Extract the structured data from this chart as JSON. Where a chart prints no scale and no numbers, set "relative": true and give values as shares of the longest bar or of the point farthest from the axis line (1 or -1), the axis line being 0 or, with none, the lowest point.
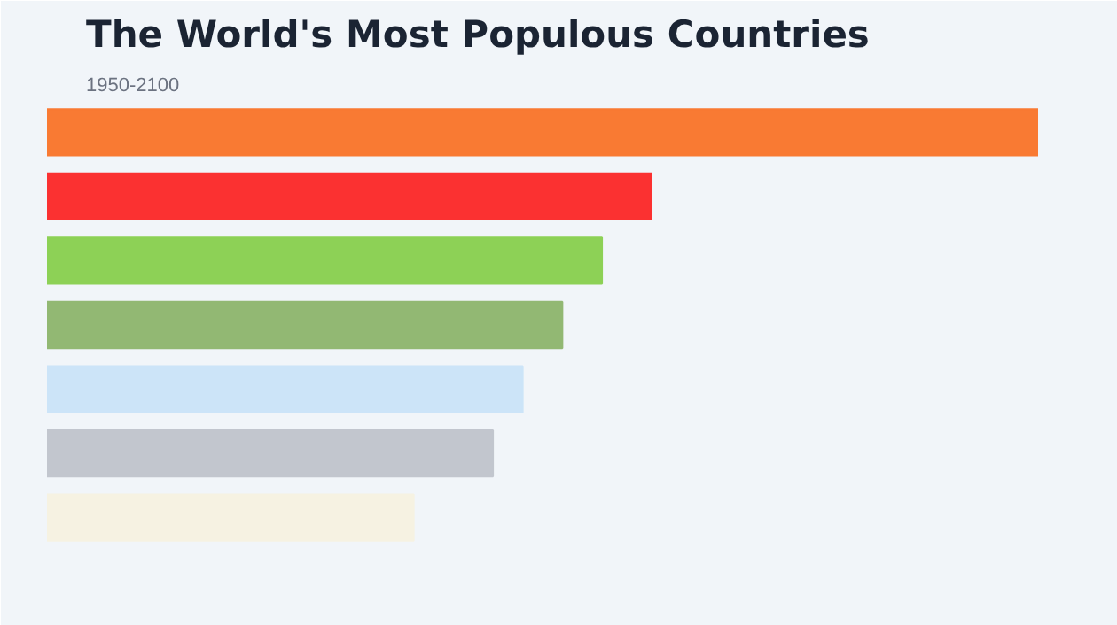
{
  "chart_data": {
    "type": "bar",
    "orientation": "horizontal",
    "relative": true,
    "title": "The World's Most Populous Countries",
    "subtitle": "1950-2100",
    "categories": [
      null,
      null,
      null,
      null,
      null,
      null,
      null
    ],
    "values": [
      1,
      0.61,
      0.56,
      0.52,
      0.48,
      0.45,
      0.37
    ],
    "colors": [
      "#f97a33",
      "#fb3131",
      "#8dd156",
      "#92b873",
      "#cce4f8",
      "#c2c6ce",
      "#f6f2e2"
    ],
    "grid": false
  }
}
